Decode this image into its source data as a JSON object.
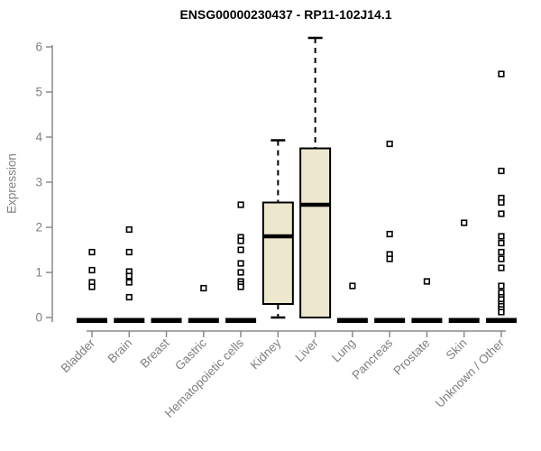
{
  "chart_data": {
    "type": "boxplot",
    "title": "ENSG00000230437 - RP11-102J14.1",
    "ylabel": "Expression",
    "ylim": [
      0,
      6.3
    ],
    "yticks": [
      0,
      1,
      2,
      3,
      4,
      5,
      6
    ],
    "grid": false,
    "legend": "none",
    "categories": [
      "Bladder",
      "Brain",
      "Breast",
      "Gastric",
      "Hematopoietic cells",
      "Kidney",
      "Liver",
      "Lung",
      "Pancreas",
      "Prostate",
      "Skin",
      "Unknown / Other"
    ],
    "colors": {
      "box_fill": "#EDE8CD",
      "box_stroke": "#000000",
      "axis_line": "#8a8a8a",
      "axis_text": "#7f7f7f",
      "outlier_fill": "#ffffff"
    },
    "series": [
      {
        "category": "Bladder",
        "q1": 0,
        "median": 0,
        "q3": 0,
        "whisker_low": 0,
        "whisker_high": 0,
        "outliers": [
          1.45,
          1.05,
          0.78,
          0.68
        ]
      },
      {
        "category": "Brain",
        "q1": 0,
        "median": 0,
        "q3": 0,
        "whisker_low": 0,
        "whisker_high": 0,
        "outliers": [
          1.95,
          1.45,
          1.02,
          0.92,
          0.78,
          0.45
        ]
      },
      {
        "category": "Breast",
        "q1": 0,
        "median": 0,
        "q3": 0,
        "whisker_low": 0,
        "whisker_high": 0,
        "outliers": []
      },
      {
        "category": "Gastric",
        "q1": 0,
        "median": 0,
        "q3": 0,
        "whisker_low": 0,
        "whisker_high": 0,
        "outliers": [
          0.65
        ]
      },
      {
        "category": "Hematopoietic cells",
        "q1": 0,
        "median": 0,
        "q3": 0,
        "whisker_low": 0,
        "whisker_high": 0,
        "outliers": [
          2.5,
          1.78,
          1.7,
          1.5,
          1.2,
          1.0,
          0.8,
          0.74,
          0.68
        ]
      },
      {
        "category": "Kidney",
        "q1": 0.3,
        "median": 1.8,
        "q3": 2.55,
        "whisker_low": 0,
        "whisker_high": 3.93,
        "outliers": []
      },
      {
        "category": "Liver",
        "q1": 0,
        "median": 2.5,
        "q3": 3.75,
        "whisker_low": 0,
        "whisker_high": 6.2,
        "outliers": []
      },
      {
        "category": "Lung",
        "q1": 0,
        "median": 0,
        "q3": 0,
        "whisker_low": 0,
        "whisker_high": 0,
        "outliers": [
          0.7
        ]
      },
      {
        "category": "Pancreas",
        "q1": 0,
        "median": 0,
        "q3": 0,
        "whisker_low": 0,
        "whisker_high": 0,
        "outliers": [
          3.85,
          1.85,
          1.4,
          1.3
        ]
      },
      {
        "category": "Prostate",
        "q1": 0,
        "median": 0,
        "q3": 0,
        "whisker_low": 0,
        "whisker_high": 0,
        "outliers": [
          0.8
        ]
      },
      {
        "category": "Skin",
        "q1": 0,
        "median": 0,
        "q3": 0,
        "whisker_low": 0,
        "whisker_high": 0,
        "outliers": [
          2.1
        ]
      },
      {
        "category": "Unknown / Other",
        "q1": 0,
        "median": 0,
        "q3": 0,
        "whisker_low": 0,
        "whisker_high": 0,
        "outliers": [
          5.4,
          3.25,
          2.65,
          2.55,
          2.3,
          1.8,
          1.65,
          1.45,
          1.3,
          1.1,
          0.7,
          0.55,
          0.45,
          0.4,
          0.3,
          0.25,
          0.18,
          0.12
        ]
      }
    ]
  }
}
